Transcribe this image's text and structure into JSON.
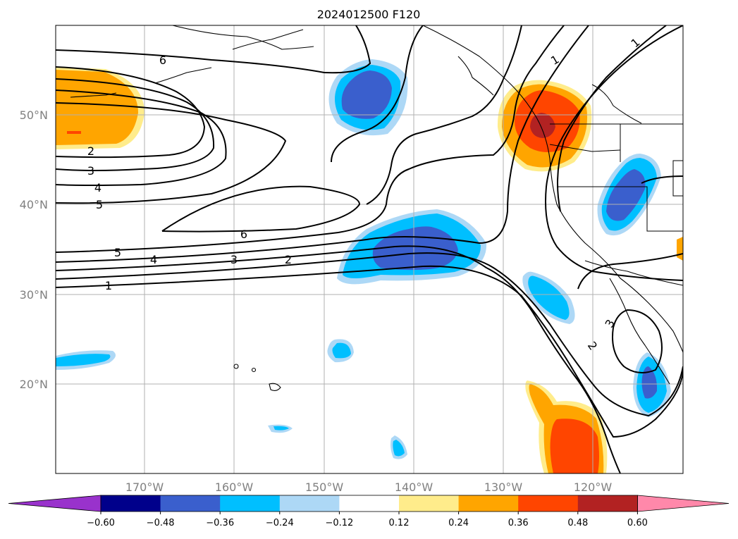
{
  "title": "2024012500 F120",
  "latitude_labels": [
    "50°N",
    "40°N",
    "30°N",
    "20°N"
  ],
  "longitude_labels": [
    "170°W",
    "160°W",
    "150°W",
    "140°W",
    "130°W",
    "120°W"
  ],
  "colorbar": {
    "tick_labels": [
      "−0.60",
      "−0.48",
      "−0.36",
      "−0.24",
      "−0.12",
      "0.12",
      "0.24",
      "0.36",
      "0.48",
      "0.60"
    ],
    "colors": [
      "#9932cc",
      "#00008b",
      "#3a5fcd",
      "#00bfff",
      "#add8f6",
      "#ffffff",
      "#ffec8b",
      "#ffa500",
      "#ff4500",
      "#b22222",
      "#ff88aa"
    ]
  },
  "contour_labels": [
    "6",
    "2",
    "3",
    "4",
    "5",
    "1",
    "6",
    "5",
    "4",
    "3",
    "2",
    "1",
    "1",
    "3",
    "2"
  ]
}
